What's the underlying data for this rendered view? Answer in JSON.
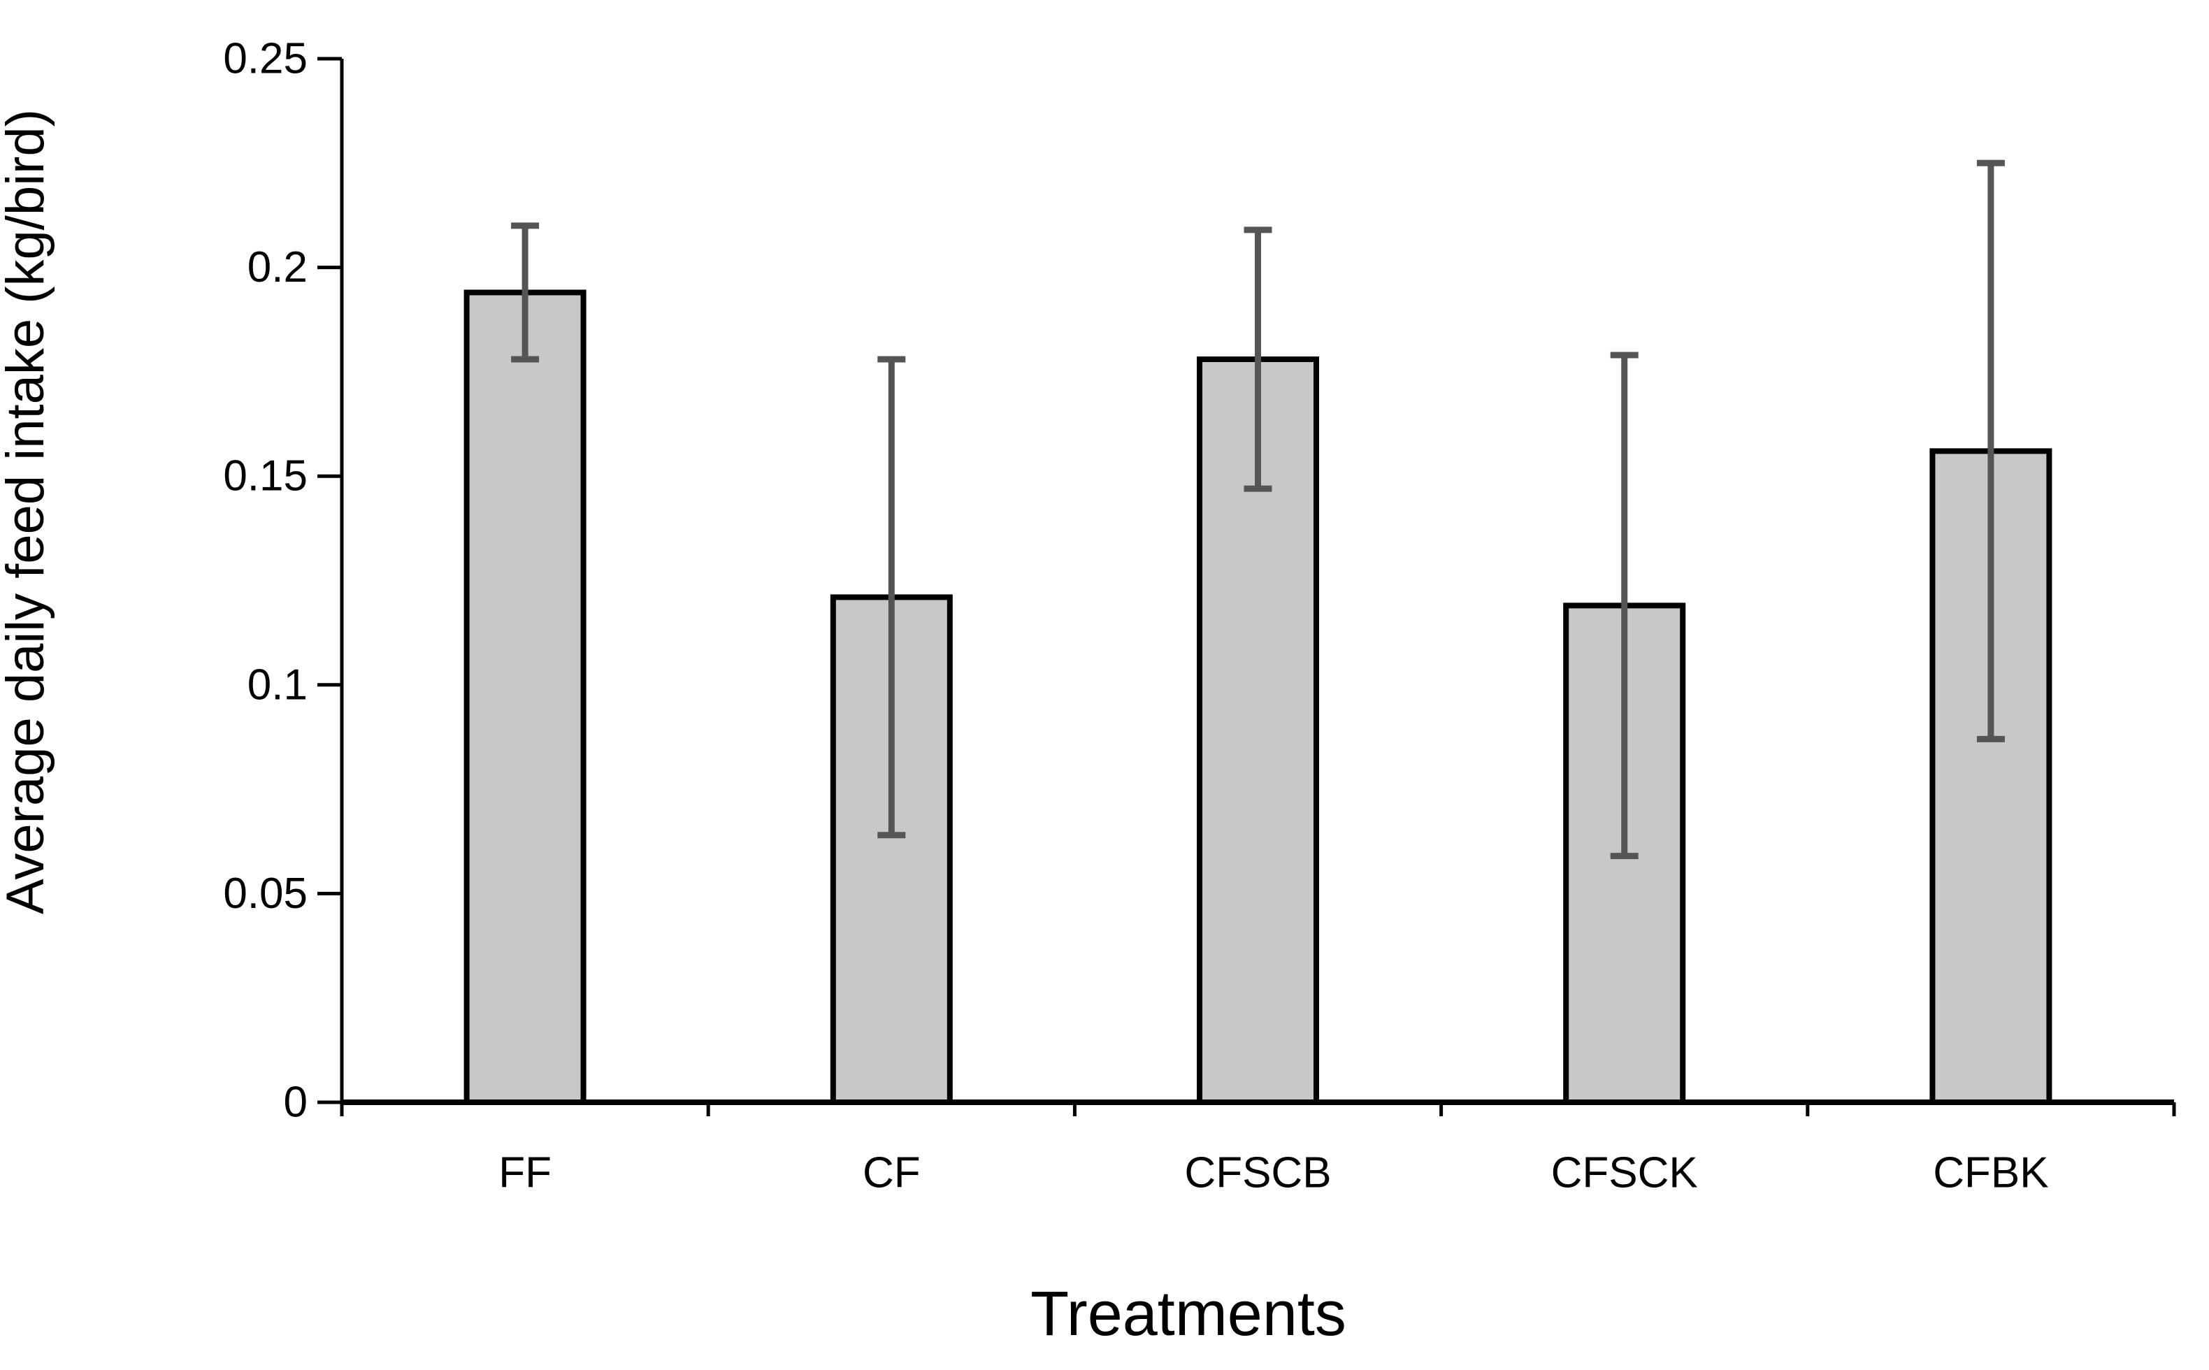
{
  "figure": {
    "background": "#ffffff"
  },
  "chart_data": {
    "type": "bar",
    "title": "",
    "xlabel": "Treatments",
    "ylabel": "Average daily feed intake (kg/bird)",
    "categories": [
      "FF",
      "CF",
      "CFSCB",
      "CFSCK",
      "CFBK"
    ],
    "values": [
      0.194,
      0.121,
      0.178,
      0.119,
      0.156
    ],
    "error_low": [
      0.178,
      0.064,
      0.147,
      0.059,
      0.087
    ],
    "error_high": [
      0.21,
      0.178,
      0.209,
      0.179,
      0.225
    ],
    "ylim": [
      0,
      0.25
    ],
    "ytick_values": [
      0,
      0.05,
      0.1,
      0.15,
      0.2,
      0.25
    ],
    "ytick_labels": [
      "0",
      "0.05",
      "0.1",
      "0.15",
      "0.2",
      "0.25"
    ],
    "grid": false,
    "legend": null,
    "bar_fill": "#c8c8c8",
    "bar_border": "#000000",
    "error_color": "#555555",
    "axis_color": "#000000",
    "text_color": "#000000"
  }
}
